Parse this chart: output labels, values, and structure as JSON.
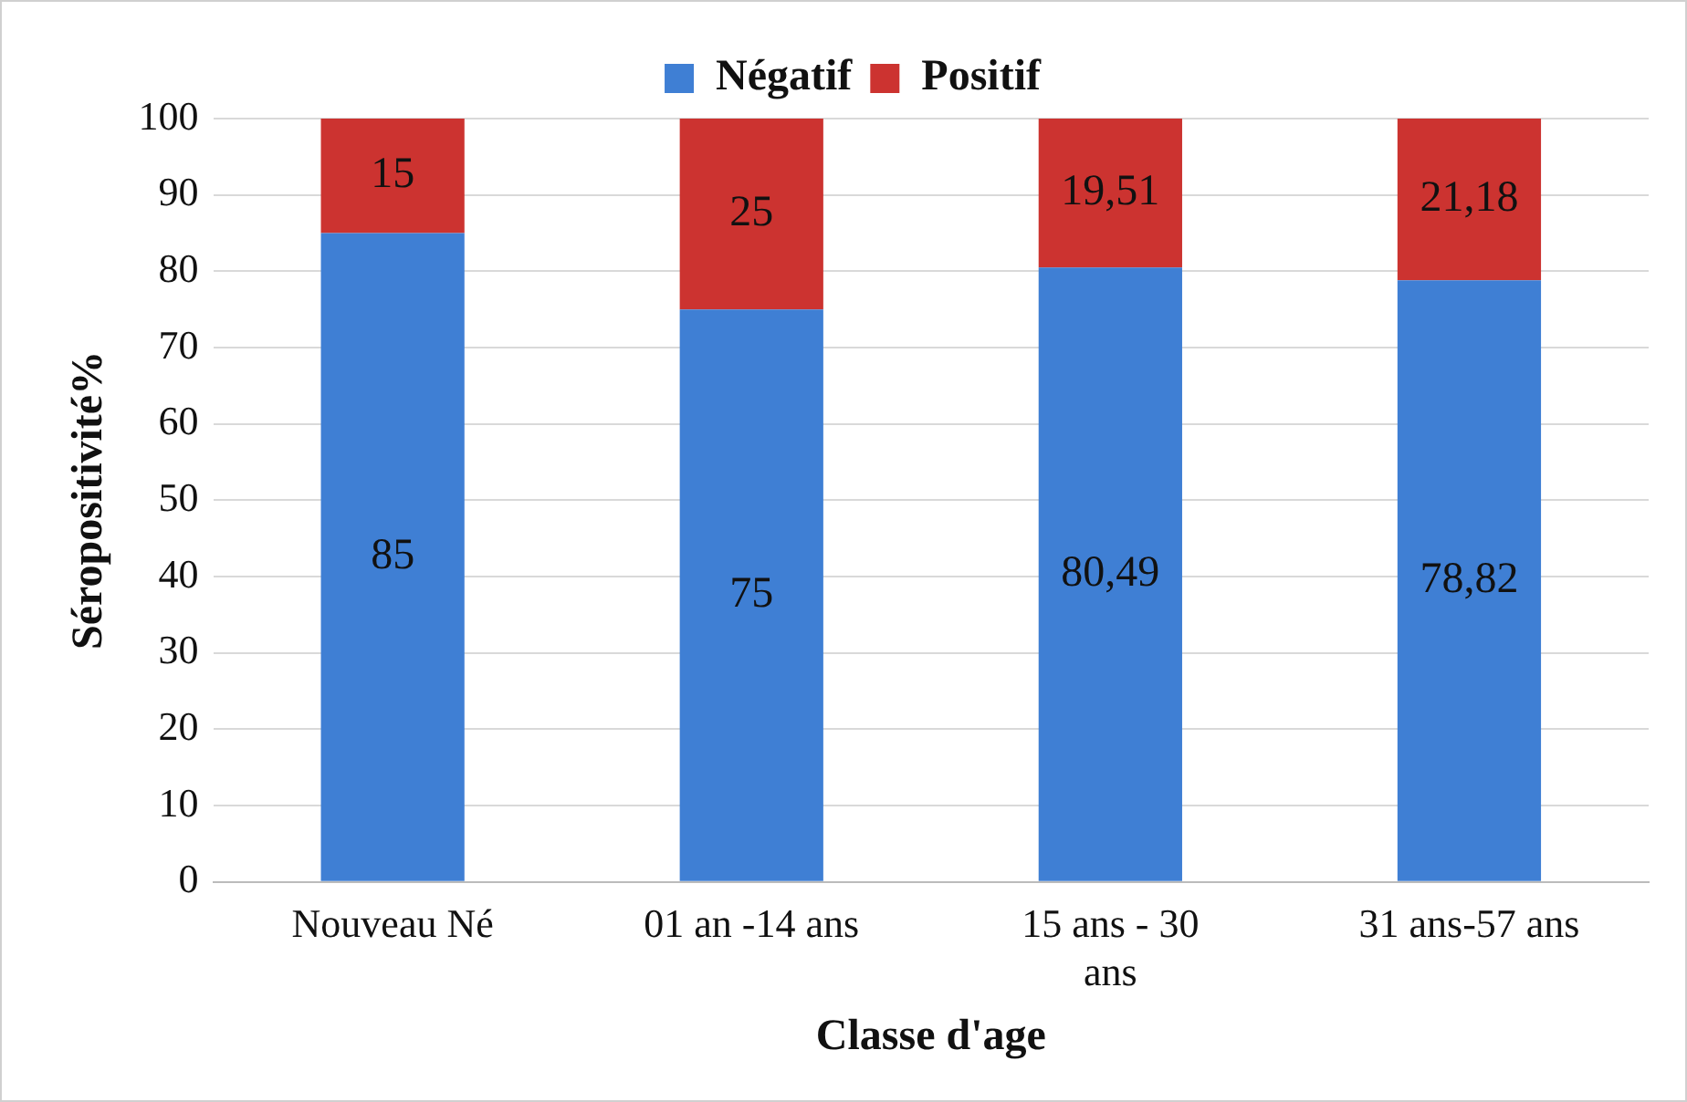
{
  "chart_data": {
    "type": "bar",
    "stacked": true,
    "xlabel": "Classe d'age",
    "ylabel": "Séropositivité%",
    "categories": [
      "Nouveau Né",
      "01 an -14 ans",
      "15 ans - 30 ans",
      "31 ans-57 ans"
    ],
    "series": [
      {
        "name": "Négatif",
        "color": "#3f7fd4",
        "values": [
          85,
          75,
          80.49,
          78.82
        ],
        "value_labels": [
          "85",
          "75",
          "80,49",
          "78,82"
        ]
      },
      {
        "name": "Positif",
        "color": "#cc3330",
        "values": [
          15,
          25,
          19.51,
          21.18
        ],
        "value_labels": [
          "15",
          "25",
          "19,51",
          "21,18"
        ]
      }
    ],
    "ylim": [
      0,
      100
    ],
    "yticks": [
      0,
      10,
      20,
      30,
      40,
      50,
      60,
      70,
      80,
      90,
      100
    ],
    "grid": "y",
    "legend": "top"
  }
}
